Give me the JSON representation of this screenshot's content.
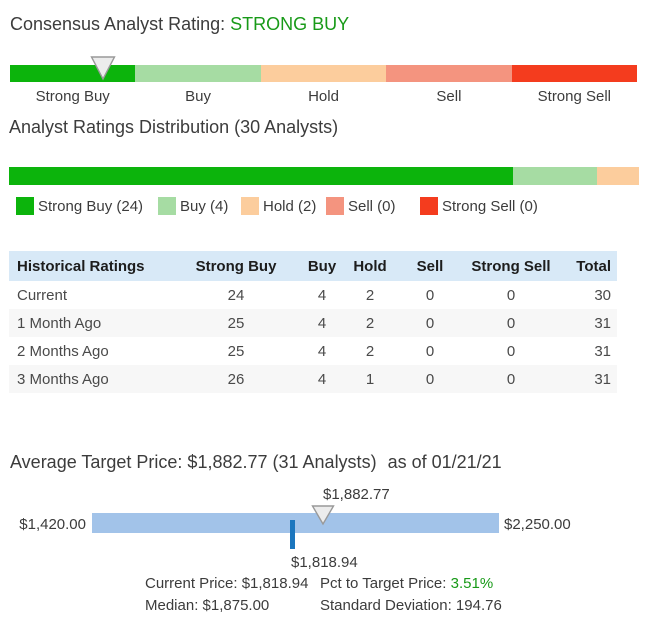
{
  "colors": {
    "strong_buy": "#0CB40C",
    "buy": "#A6DCA3",
    "hold": "#FCCD9D",
    "sell": "#F4947F",
    "strong_sell": "#F43C1E",
    "green_text": "#189A18",
    "table_header_bg": "#D8E9F7",
    "row_alt_bg": "#F7F7F7",
    "target_bar_blue": "#A2C3E9",
    "tick_blue": "#1B76BE",
    "pointer_fill": "#ECECEC",
    "pointer_border": "#999999"
  },
  "consensus": {
    "title_prefix": "Consensus Analyst Rating: ",
    "rating": "STRONG BUY",
    "pointer_pct": 14.8
  },
  "ratings": [
    {
      "label": "Strong Buy",
      "count": 24,
      "color_key": "strong_buy",
      "legend_label": "Strong Buy (24)"
    },
    {
      "label": "Buy",
      "count": 4,
      "color_key": "buy",
      "legend_label": "Buy (4)"
    },
    {
      "label": "Hold",
      "count": 2,
      "color_key": "hold",
      "legend_label": "Hold (2)"
    },
    {
      "label": "Sell",
      "count": 0,
      "color_key": "sell",
      "legend_label": "Sell (0)"
    },
    {
      "label": "Strong Sell",
      "count": 0,
      "color_key": "strong_sell",
      "legend_label": "Strong Sell (0)"
    }
  ],
  "distribution": {
    "heading": "Analyst Ratings Distribution (30 Analysts)",
    "total_analysts": 30
  },
  "table": {
    "headers": [
      "Historical Ratings",
      "Strong Buy",
      "Buy",
      "Hold",
      "Sell",
      "Strong Sell",
      "Total"
    ],
    "rows": [
      [
        "Current",
        "24",
        "4",
        "2",
        "0",
        "0",
        "30"
      ],
      [
        "1 Month Ago",
        "25",
        "4",
        "2",
        "0",
        "0",
        "31"
      ],
      [
        "2 Months Ago",
        "25",
        "4",
        "2",
        "0",
        "0",
        "31"
      ],
      [
        "3 Months Ago",
        "26",
        "4",
        "1",
        "0",
        "0",
        "31"
      ]
    ]
  },
  "target": {
    "heading": "Average Target Price: $1,882.77 (31 Analysts)",
    "as_of": "as of 01/21/21",
    "low": 1420,
    "high": 2250,
    "average": 1882.77,
    "current": 1818.94,
    "low_label": "$1,420.00",
    "high_label": "$2,250.00",
    "avg_label": "$1,882.77",
    "current_label": "$1,818.94",
    "stats": [
      {
        "label": "Current Price:",
        "value": "$1,818.94",
        "green": false
      },
      {
        "label": "Pct to Target Price:",
        "value": "3.51%",
        "green": true
      },
      {
        "label": "Median:",
        "value": "$1,875.00",
        "green": false
      },
      {
        "label": "Standard Deviation:",
        "value": "194.76",
        "green": false
      }
    ]
  },
  "chart_data": [
    {
      "type": "bar",
      "title": "Consensus Analyst Rating scale",
      "categories": [
        "Strong Buy",
        "Buy",
        "Hold",
        "Sell",
        "Strong Sell"
      ],
      "values": [
        1,
        1,
        1,
        1,
        1
      ],
      "annotations": [
        "pointer positioned at 14.8% of scale width, over Strong Buy"
      ],
      "legend_position": "below"
    },
    {
      "type": "bar",
      "title": "Analyst Ratings Distribution (30 Analysts)",
      "categories": [
        "Strong Buy",
        "Buy",
        "Hold",
        "Sell",
        "Strong Sell"
      ],
      "values": [
        24,
        4,
        2,
        0,
        0
      ],
      "xlabel": "",
      "ylabel": "",
      "annotations": [
        "rendered as single horizontal stacked bar, segment width proportional to count / 30"
      ]
    },
    {
      "type": "table",
      "title": "Historical Ratings",
      "columns": [
        "Historical Ratings",
        "Strong Buy",
        "Buy",
        "Hold",
        "Sell",
        "Strong Sell",
        "Total"
      ],
      "rows": [
        [
          "Current",
          24,
          4,
          2,
          0,
          0,
          30
        ],
        [
          "1 Month Ago",
          25,
          4,
          2,
          0,
          0,
          31
        ],
        [
          "2 Months Ago",
          25,
          4,
          2,
          0,
          0,
          31
        ],
        [
          "3 Months Ago",
          26,
          4,
          1,
          0,
          0,
          31
        ]
      ]
    },
    {
      "type": "bar",
      "title": "Average Target Price: $1,882.77 (31 Analysts) as of 01/21/21",
      "x": {
        "min": 1420,
        "max": 2250
      },
      "markers": [
        {
          "name": "low",
          "value": 1420.0,
          "label": "$1,420.00"
        },
        {
          "name": "high",
          "value": 2250.0,
          "label": "$2,250.00"
        },
        {
          "name": "average",
          "value": 1882.77,
          "label": "$1,882.77",
          "symbol": "gray triangle above bar"
        },
        {
          "name": "current",
          "value": 1818.94,
          "label": "$1,818.94",
          "symbol": "blue tick below bar"
        }
      ],
      "annotations": [
        "Current Price: $1,818.94",
        "Pct to Target Price: 3.51%",
        "Median: $1,875.00",
        "Standard Deviation: 194.76"
      ]
    }
  ]
}
